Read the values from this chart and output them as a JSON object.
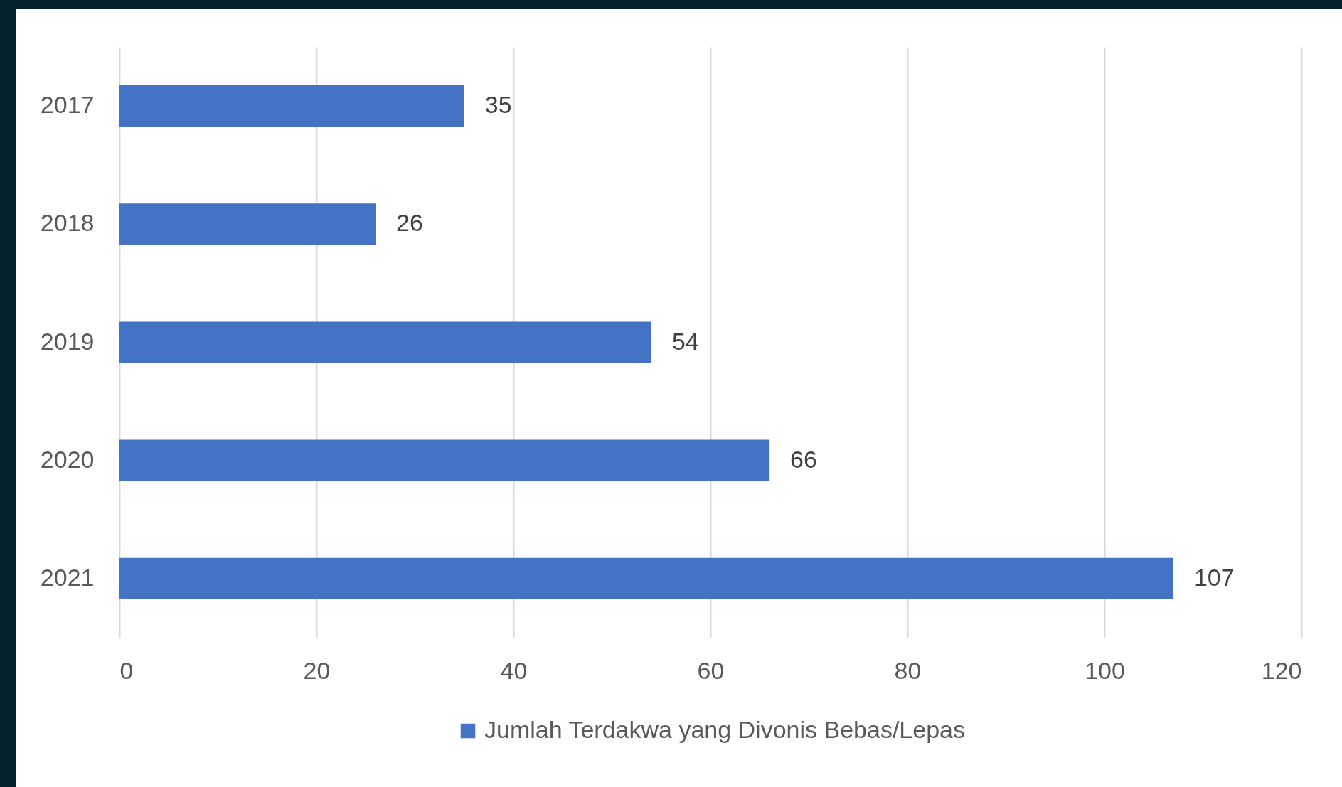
{
  "chart_data": {
    "type": "bar",
    "orientation": "horizontal",
    "categories": [
      "2017",
      "2018",
      "2019",
      "2020",
      "2021"
    ],
    "series": [
      {
        "name": "Jumlah Terdakwa yang Divonis Bebas/Lepas",
        "color": "#4472c4",
        "values": [
          35,
          26,
          54,
          66,
          107
        ]
      }
    ],
    "xlim": [
      0,
      120
    ],
    "xticks": [
      0,
      20,
      40,
      60,
      80,
      100,
      120
    ],
    "grid": "x",
    "legend": "bottom",
    "data_labels": true
  }
}
